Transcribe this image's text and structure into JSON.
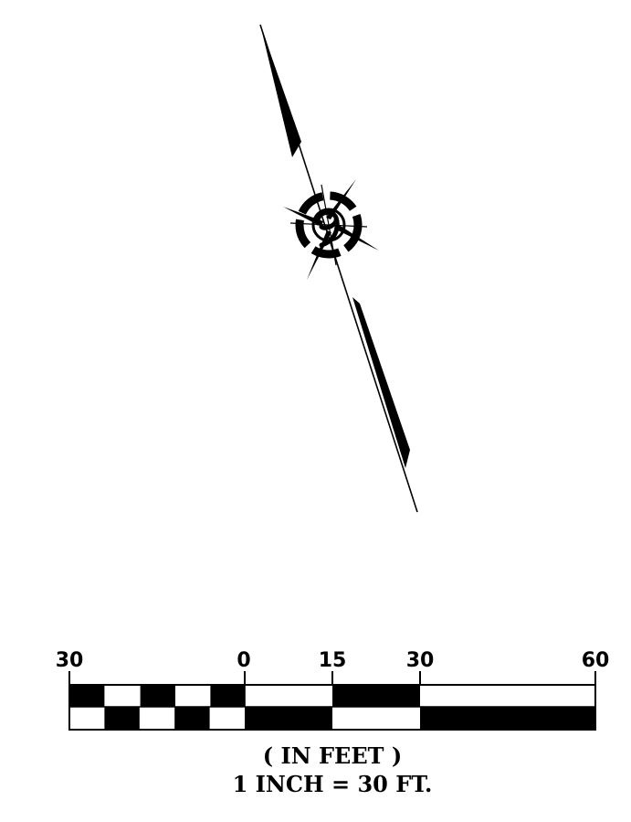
{
  "north_arrow": {
    "icon": "north-arrow-icon",
    "center_symbol": "centerline-icon"
  },
  "scale_bar": {
    "tick_labels": {
      "left_30": "30",
      "zero": "0",
      "fifteen": "15",
      "right_30": "30",
      "sixty": "60"
    },
    "units_label": "( IN FEET )",
    "ratio_label": "1 INCH = 30 FT."
  },
  "colors": {
    "ink": "#000000",
    "paper": "#ffffff"
  }
}
